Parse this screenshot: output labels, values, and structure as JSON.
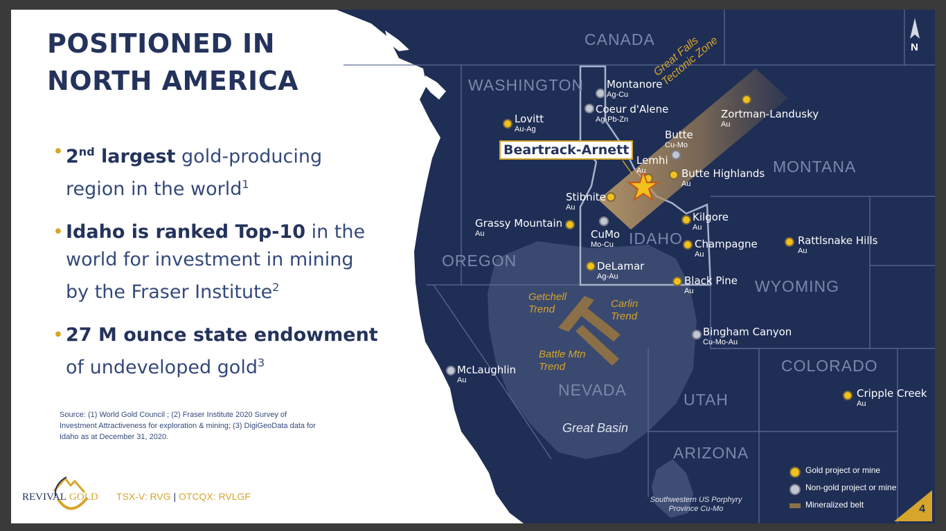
{
  "slide": {
    "title_line1": "POSITIONED IN",
    "title_line2": "NORTH AMERICA",
    "page_number": "4"
  },
  "bullets": [
    {
      "bold_pre": "2",
      "bold_sup": "nd",
      "bold_post": " largest",
      "text": " gold-producing region in the world",
      "ref": "1"
    },
    {
      "bold": "Idaho is ranked Top-10",
      "text": " in the world for investment in mining by the Fraser Institute",
      "ref": "2"
    },
    {
      "bold": "27 M ounce state endowment",
      "text": " of undeveloped gold",
      "ref": "3"
    }
  ],
  "source_note": "Source: (1) World Gold Council ; (2) Fraser Institute 2020 Survey of Investment Attractiveness for exploration & mining; (3) DigiGeoData data for Idaho as at December 31, 2020.",
  "logo": {
    "name_left": "REVIVAL",
    "name_right": "GOLD"
  },
  "ticker": {
    "tsx": "TSX-V: RVG",
    "separator": "|",
    "otc": "OTCQX: RVLGF"
  },
  "compass": {
    "label": "N"
  },
  "map": {
    "regions": {
      "canada": "CANADA",
      "washington": "WASHINGTON",
      "montana": "MONTANA",
      "idaho": "IDAHO",
      "oregon": "OREGON",
      "wyoming": "WYOMING",
      "nevada": "NEVADA",
      "utah": "UTAH",
      "colorado": "COLORADO",
      "arizona": "ARIZONA"
    },
    "features": {
      "great_falls": "Great Falls Tectonic Zone",
      "getchell": "Getchell Trend",
      "carlin": "Carlin Trend",
      "battle_mtn": "Battle Mtn Trend",
      "great_basin": "Great Basin",
      "porphyry": "Southwestern US Porphyry Province Cu-Mo"
    },
    "featured_project": "Beartrack-Arnett",
    "sites": {
      "montanore": {
        "name": "Montanore",
        "metals": "Ag-Cu",
        "type": "non-gold"
      },
      "coeur": {
        "name": "Coeur d'Alene",
        "metals": "Ag-Pb-Zn",
        "type": "non-gold"
      },
      "lovitt": {
        "name": "Lovitt",
        "metals": "Au-Ag",
        "type": "gold"
      },
      "butte": {
        "name": "Butte",
        "metals": "Cu-Mo",
        "type": "non-gold"
      },
      "zortman": {
        "name": "Zortman-Landusky",
        "metals": "Au",
        "type": "gold"
      },
      "lemhi": {
        "name": "Lemhi",
        "metals": "Au",
        "type": "gold"
      },
      "butte_highlands": {
        "name": "Butte Highlands",
        "metals": "Au",
        "type": "gold"
      },
      "stibnite": {
        "name": "Stibnite",
        "metals": "Au",
        "type": "gold"
      },
      "grassy": {
        "name": "Grassy Mountain",
        "metals": "Au",
        "type": "gold"
      },
      "cumo": {
        "name": "CuMo",
        "metals": "Mo-Cu",
        "type": "non-gold"
      },
      "kilgore": {
        "name": "Kilgore",
        "metals": "Au",
        "type": "gold"
      },
      "champagne": {
        "name": "Champagne",
        "metals": "Au",
        "type": "gold"
      },
      "rattlesnake": {
        "name": "Rattlsnake Hills",
        "metals": "Au",
        "type": "gold"
      },
      "delamar": {
        "name": "DeLamar",
        "metals": "Ag-Au",
        "type": "gold"
      },
      "black_pine": {
        "name": "Black Pine",
        "metals": "Au",
        "type": "gold"
      },
      "bingham": {
        "name": "Bingham Canyon",
        "metals": "Cu-Mo-Au",
        "type": "non-gold"
      },
      "mclaughlin": {
        "name": "McLaughlin",
        "metals": "Au",
        "type": "non-gold"
      },
      "cripple": {
        "name": "Cripple Creek",
        "metals": "Au",
        "type": "gold"
      }
    },
    "colors": {
      "navy": "#1f2e55",
      "gold": "#d6a52b",
      "belt": "#8a6f47",
      "border": "#7889ad"
    }
  },
  "legend": [
    {
      "label": "Gold project or mine",
      "kind": "gold"
    },
    {
      "label": "Non-gold project or mine",
      "kind": "non-gold"
    },
    {
      "label": "Mineralized belt",
      "kind": "belt"
    }
  ]
}
